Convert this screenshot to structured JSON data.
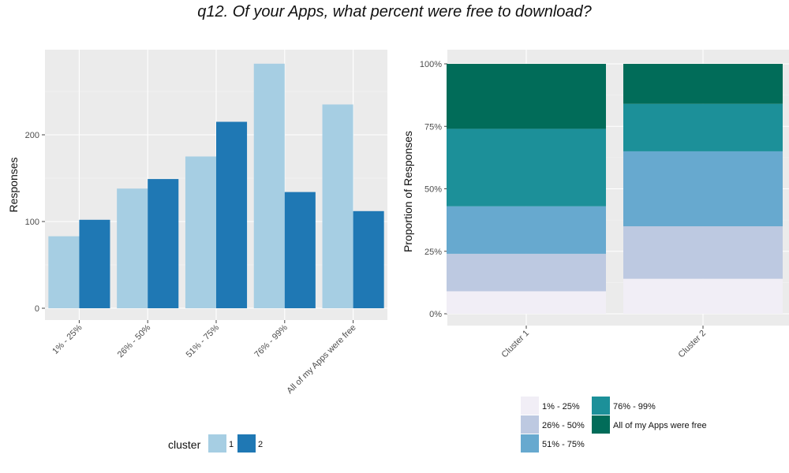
{
  "title": "q12. Of your Apps, what percent were free to download?",
  "chart_data": [
    {
      "type": "bar",
      "ylabel": "Responses",
      "xlabel": "",
      "categories": [
        "1% - 25%",
        "26% - 50%",
        "51% - 75%",
        "76% - 99%",
        "All of my Apps were free"
      ],
      "series": [
        {
          "name": "1",
          "color": "#a6cee3",
          "values": [
            83,
            138,
            175,
            282,
            235
          ]
        },
        {
          "name": "2",
          "color": "#1f78b4",
          "values": [
            102,
            149,
            215,
            134,
            112
          ]
        }
      ],
      "ylim": [
        0,
        290
      ],
      "yticks": [
        0,
        100,
        200
      ],
      "legend_title": "cluster",
      "legend_position": "bottom",
      "grid": true
    },
    {
      "type": "bar",
      "stacked": true,
      "ylabel": "Proportion of Responses",
      "xlabel": "",
      "categories": [
        "Cluster 1",
        "Cluster 2"
      ],
      "series": [
        {
          "name": "1% - 25%",
          "color": "#f1eef6",
          "values": [
            0.09,
            0.14
          ]
        },
        {
          "name": "26% - 50%",
          "color": "#bdc9e1",
          "values": [
            0.15,
            0.21
          ]
        },
        {
          "name": "51% - 75%",
          "color": "#67a9cf",
          "values": [
            0.19,
            0.3
          ]
        },
        {
          "name": "76% - 99%",
          "color": "#1c9099",
          "values": [
            0.31,
            0.19
          ]
        },
        {
          "name": "All of my Apps were free",
          "color": "#016c59",
          "values": [
            0.26,
            0.16
          ]
        }
      ],
      "ylim": [
        0,
        1
      ],
      "yticks": [
        "0%",
        "25%",
        "50%",
        "75%",
        "100%"
      ],
      "legend_position": "bottom",
      "grid": true
    }
  ]
}
